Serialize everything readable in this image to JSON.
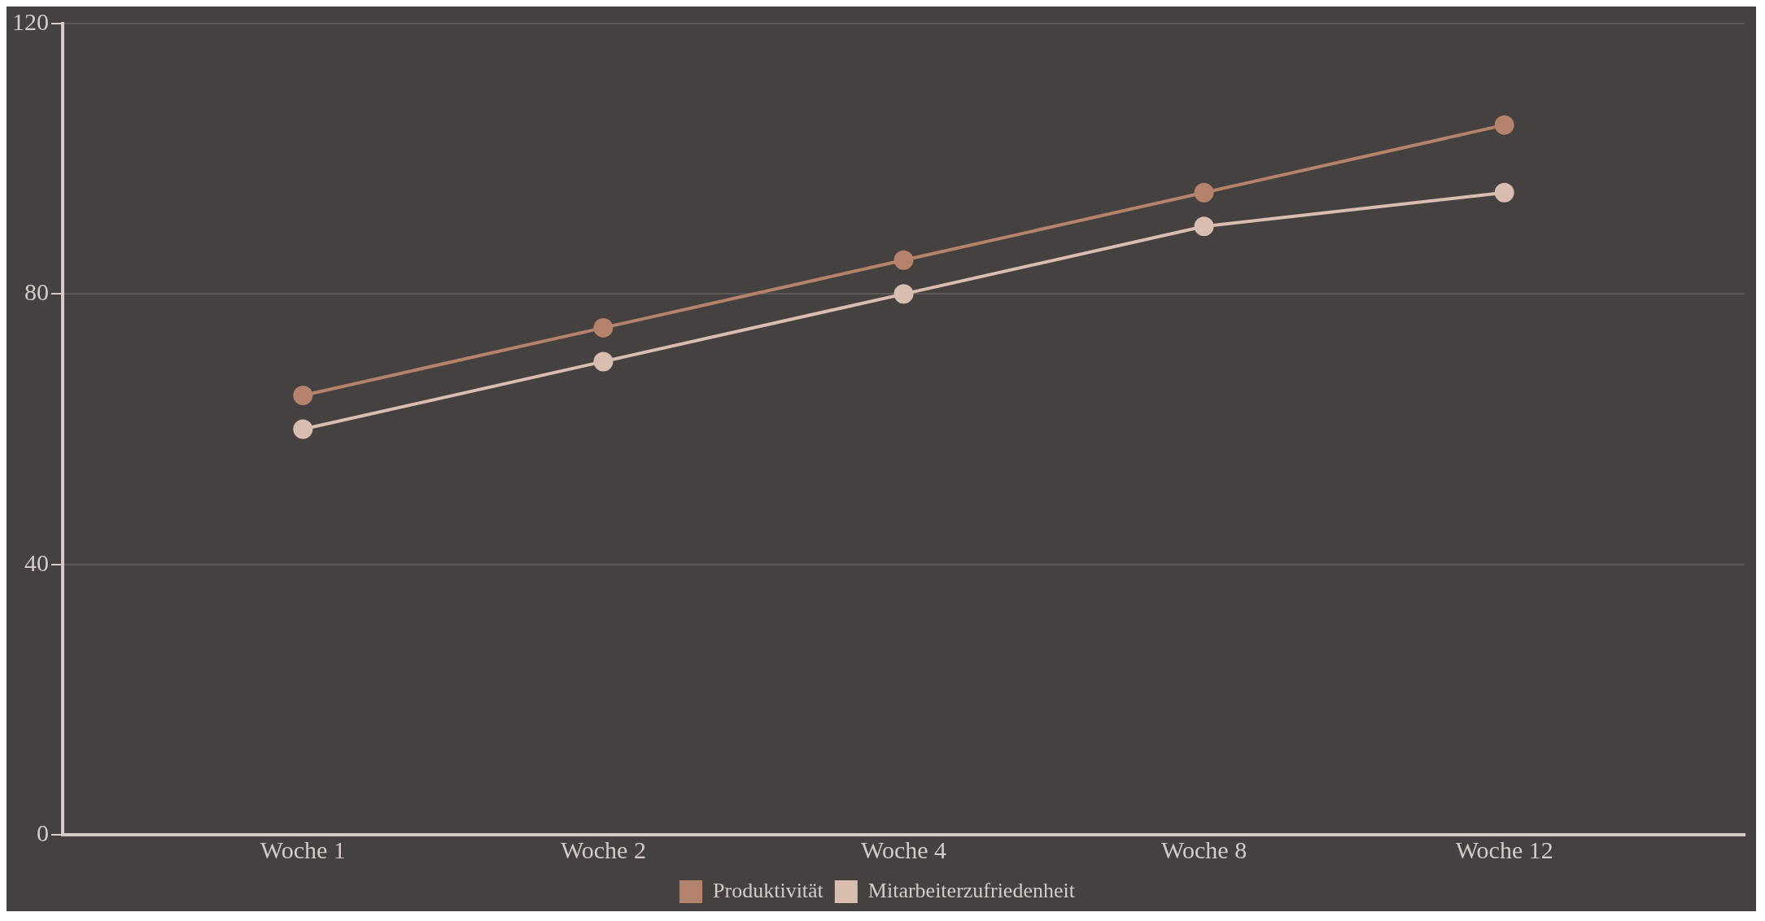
{
  "chart_data": {
    "type": "line",
    "categories": [
      "Woche 1",
      "Woche 2",
      "Woche 4",
      "Woche 8",
      "Woche 12"
    ],
    "series": [
      {
        "name": "Produktivität",
        "color": "#b5826b",
        "values": [
          65,
          75,
          85,
          95,
          105
        ]
      },
      {
        "name": "Mitarbeiterzufriedenheit",
        "color": "#d9bdb1",
        "values": [
          60,
          70,
          80,
          90,
          95
        ]
      }
    ],
    "ylim": [
      0,
      120
    ],
    "yticks": [
      0,
      40,
      80,
      120
    ],
    "grid": "y",
    "legend": "bottom",
    "marker": "circle",
    "line_style": "solid"
  }
}
